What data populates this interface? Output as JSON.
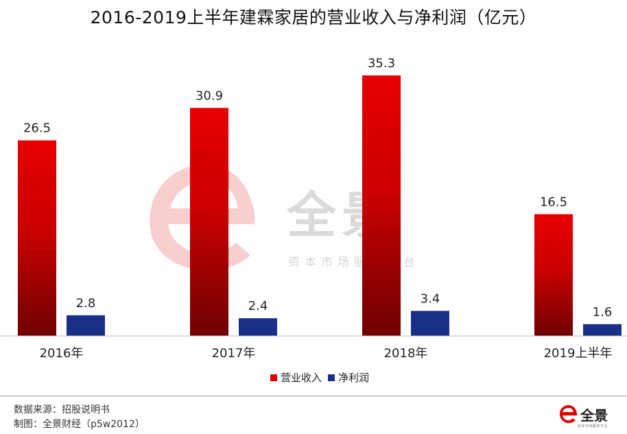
{
  "chart_data": {
    "type": "bar",
    "title": "2016-2019上半年建霖家居的营业收入与净利润（亿元）",
    "categories": [
      "2016年",
      "2017年",
      "2018年",
      "2019上半年"
    ],
    "series": [
      {
        "name": "营业收入",
        "values": [
          26.5,
          30.9,
          35.3,
          16.5
        ]
      },
      {
        "name": "净利润",
        "values": [
          2.8,
          2.4,
          3.4,
          1.6
        ]
      }
    ],
    "value_labels": {
      "营业收入": [
        "26.5",
        "30.9",
        "35.3",
        "16.5"
      ],
      "净利润": [
        "2.8",
        "2.4",
        "3.4",
        "1.6"
      ]
    },
    "ylim": [
      0,
      35.3
    ],
    "grid": false,
    "legend_position": "bottom",
    "colors": {
      "营业收入": "#e00000",
      "营业收入_dark": "#6e0000",
      "净利润": "#1a2f87"
    }
  },
  "footer": {
    "source": "数据来源：招股说明书",
    "author": "制图：全景财经（p5w2012）"
  },
  "brand": {
    "logo_text": "全景",
    "tagline": "资本市场服务平台",
    "logo_color": "#e00000"
  },
  "watermark": {
    "main": "全景",
    "sub": "资本市场服务平台"
  }
}
